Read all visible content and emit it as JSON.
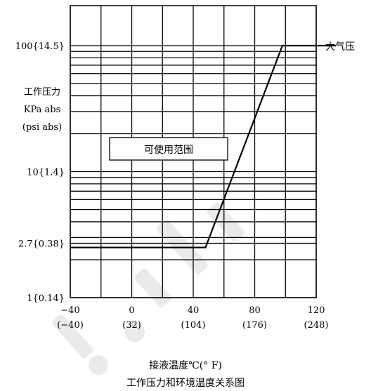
{
  "chart_data": {
    "type": "line",
    "title": "工作压力和环境温度关系图",
    "xlabel": "接液温度℃(° F)",
    "ylabel_lines": [
      "工作压力",
      "KPa abs",
      "(psi abs)"
    ],
    "xlim": [
      -40,
      120
    ],
    "ylim": [
      1,
      100
    ],
    "y_scale": "log",
    "x_ticks": [
      {
        "value": -40,
        "label": "−40",
        "sublabel": "(−40)"
      },
      {
        "value": 0,
        "label": "0",
        "sublabel": "(32)"
      },
      {
        "value": 40,
        "label": "40",
        "sublabel": "(104)"
      },
      {
        "value": 80,
        "label": "80",
        "sublabel": "(176)"
      },
      {
        "value": 120,
        "label": "120",
        "sublabel": "(248)"
      }
    ],
    "y_ticks": [
      {
        "value": 1,
        "label": "1{0.14}"
      },
      {
        "value": 2.7,
        "label": "2.7{0.38}"
      },
      {
        "value": 10,
        "label": "10{1.4}"
      },
      {
        "value": 100,
        "label": "100{14.5}"
      }
    ],
    "x_grid": [
      -40,
      -20,
      0,
      20,
      40,
      60,
      80,
      100,
      120
    ],
    "y_grid": [
      1,
      2,
      2.7,
      3,
      4,
      5,
      6,
      7,
      8,
      9,
      10,
      20,
      30,
      40,
      50,
      60,
      70,
      80,
      90,
      100
    ],
    "grid": true,
    "series": [
      {
        "x": [
          -40,
          48,
          98,
          120
        ],
        "y": [
          2.5,
          2.5,
          100,
          100
        ]
      }
    ],
    "annotations": [
      {
        "text": "可使用范围",
        "boxed": true
      },
      {
        "text": "大气压"
      }
    ]
  }
}
